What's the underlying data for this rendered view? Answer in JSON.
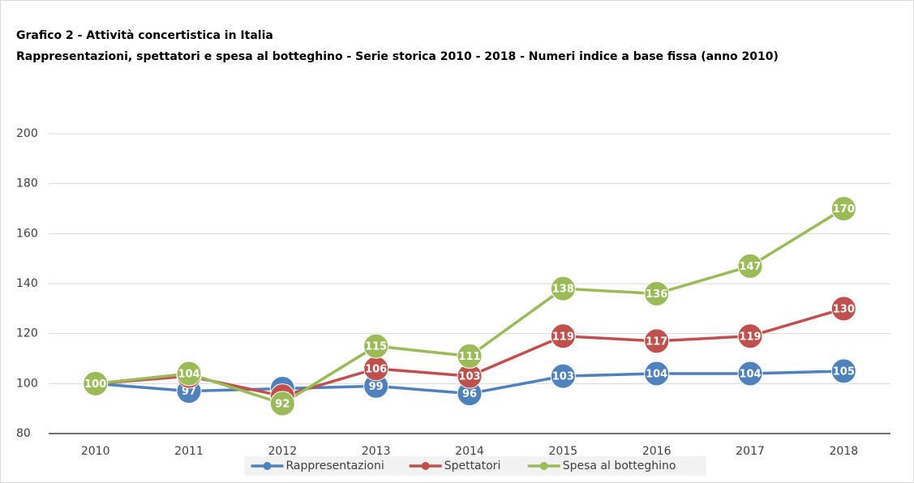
{
  "chart_data": {
    "type": "line",
    "title": "Grafico 2 - Attività concertistica in Italia",
    "subtitle": "Rappresentazioni, spettatori e spesa al botteghino - Serie storica 2010 - 2018 - Numeri indice a base fissa (anno 2010)",
    "categories": [
      "2010",
      "2011",
      "2012",
      "2013",
      "2014",
      "2015",
      "2016",
      "2017",
      "2018"
    ],
    "series": [
      {
        "name": "Rappresentazioni",
        "color": "#4f81bd",
        "values": [
          100,
          97,
          98,
          99,
          96,
          103,
          104,
          104,
          105
        ]
      },
      {
        "name": "Spettatori",
        "color": "#c0504d",
        "values": [
          100,
          103,
          95,
          106,
          103,
          119,
          117,
          119,
          130
        ]
      },
      {
        "name": "Spesa al botteghino",
        "color": "#9bbb59",
        "values": [
          100,
          104,
          92,
          115,
          111,
          138,
          136,
          147,
          170
        ]
      }
    ],
    "ylim": [
      80,
      200
    ],
    "yticks": [
      80,
      100,
      120,
      140,
      160,
      180,
      200
    ],
    "grid": true,
    "legend": "bottom"
  }
}
